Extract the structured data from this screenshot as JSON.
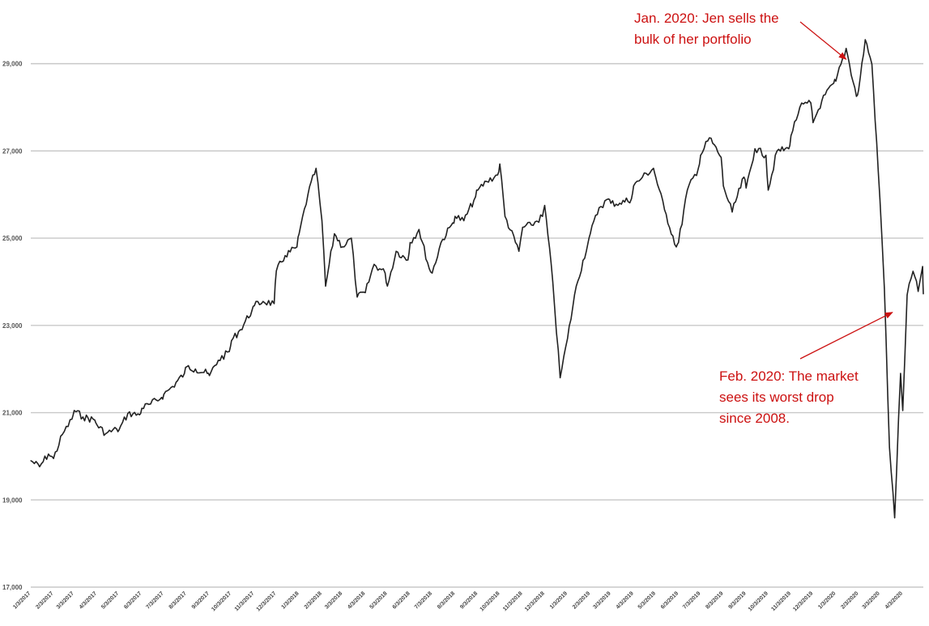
{
  "chart_data": {
    "type": "line",
    "title": "",
    "xlabel": "",
    "ylabel": "",
    "ylim": [
      17000,
      30200
    ],
    "grid": true,
    "y_ticks": [
      17000,
      19000,
      21000,
      23000,
      25000,
      27000,
      29000
    ],
    "y_tick_labels": [
      "17,000",
      "19,000",
      "21,000",
      "23,000",
      "25,000",
      "27,000",
      "29,000"
    ],
    "x_tick_labels": [
      "1/3/2017",
      "2/3/2017",
      "3/3/2017",
      "4/3/2017",
      "5/3/2017",
      "6/3/2017",
      "7/3/2017",
      "8/3/2017",
      "9/3/2017",
      "10/3/2017",
      "11/3/2017",
      "12/3/2017",
      "1/3/2018",
      "2/3/2018",
      "3/3/2018",
      "4/3/2018",
      "5/3/2018",
      "6/3/2018",
      "7/3/2018",
      "8/3/2018",
      "9/3/2018",
      "10/3/2018",
      "11/3/2018",
      "12/3/2018",
      "1/3/2019",
      "2/3/2019",
      "3/3/2019",
      "4/3/2019",
      "5/3/2019",
      "6/3/2019",
      "7/3/2019",
      "8/3/2019",
      "9/3/2019",
      "10/3/2019",
      "11/3/2019",
      "12/3/2019",
      "1/3/2020",
      "2/3/2020",
      "3/3/2020",
      "4/3/2020"
    ],
    "line_color": "#222222",
    "grid_color": "#c8c8c8",
    "series": [
      {
        "points": [
          [
            "1/3/2017",
            19900
          ],
          [
            "1/15/2017",
            19760
          ],
          [
            "1/27/2017",
            20050
          ],
          [
            "2/3/2017",
            19950
          ],
          [
            "2/15/2017",
            20500
          ],
          [
            "2/28/2017",
            20850
          ],
          [
            "3/3/2017",
            21050
          ],
          [
            "3/15/2017",
            20900
          ],
          [
            "3/31/2017",
            20830
          ],
          [
            "4/3/2017",
            20720
          ],
          [
            "4/15/2017",
            20520
          ],
          [
            "4/30/2017",
            20620
          ],
          [
            "5/3/2017",
            20600
          ],
          [
            "5/15/2017",
            20980
          ],
          [
            "5/31/2017",
            20950
          ],
          [
            "6/3/2017",
            21100
          ],
          [
            "6/15/2017",
            21200
          ],
          [
            "6/30/2017",
            21350
          ],
          [
            "7/3/2017",
            21420
          ],
          [
            "7/15/2017",
            21600
          ],
          [
            "7/31/2017",
            21900
          ],
          [
            "8/3/2017",
            22050
          ],
          [
            "8/15/2017",
            22000
          ],
          [
            "8/31/2017",
            21900
          ],
          [
            "9/3/2017",
            21850
          ],
          [
            "9/15/2017",
            22200
          ],
          [
            "9/30/2017",
            22400
          ],
          [
            "10/3/2017",
            22650
          ],
          [
            "10/15/2017",
            22900
          ],
          [
            "10/31/2017",
            23350
          ],
          [
            "11/3/2017",
            23450
          ],
          [
            "11/15/2017",
            23550
          ],
          [
            "11/30/2017",
            23500
          ],
          [
            "12/3/2017",
            24250
          ],
          [
            "12/15/2017",
            24600
          ],
          [
            "12/31/2017",
            24800
          ],
          [
            "1/3/2018",
            25100
          ],
          [
            "1/15/2018",
            26000
          ],
          [
            "1/26/2018",
            26600
          ],
          [
            "2/3/2018",
            25400
          ],
          [
            "2/8/2018",
            23900
          ],
          [
            "2/20/2018",
            25100
          ],
          [
            "3/3/2018",
            24800
          ],
          [
            "3/15/2018",
            25000
          ],
          [
            "3/23/2018",
            23650
          ],
          [
            "4/3/2018",
            23750
          ],
          [
            "4/15/2018",
            24400
          ],
          [
            "4/30/2018",
            24200
          ],
          [
            "5/3/2018",
            23900
          ],
          [
            "5/15/2018",
            24700
          ],
          [
            "5/31/2018",
            24500
          ],
          [
            "6/3/2018",
            24900
          ],
          [
            "6/15/2018",
            25200
          ],
          [
            "6/29/2018",
            24300
          ],
          [
            "7/3/2018",
            24200
          ],
          [
            "7/15/2018",
            24900
          ],
          [
            "7/31/2018",
            25350
          ],
          [
            "8/3/2018",
            25500
          ],
          [
            "8/15/2018",
            25400
          ],
          [
            "8/31/2018",
            25950
          ],
          [
            "9/3/2018",
            26100
          ],
          [
            "9/15/2018",
            26300
          ],
          [
            "9/30/2018",
            26450
          ],
          [
            "10/3/2018",
            26700
          ],
          [
            "10/10/2018",
            25500
          ],
          [
            "10/29/2018",
            24700
          ],
          [
            "11/3/2018",
            25250
          ],
          [
            "11/15/2018",
            25300
          ],
          [
            "11/30/2018",
            25500
          ],
          [
            "12/3/2018",
            25750
          ],
          [
            "12/14/2018",
            24000
          ],
          [
            "12/24/2018",
            21800
          ],
          [
            "1/3/2019",
            22700
          ],
          [
            "1/15/2019",
            23900
          ],
          [
            "1/31/2019",
            24900
          ],
          [
            "2/3/2019",
            25100
          ],
          [
            "2/15/2019",
            25700
          ],
          [
            "2/28/2019",
            25900
          ],
          [
            "3/3/2019",
            25800
          ],
          [
            "3/15/2019",
            25800
          ],
          [
            "3/31/2019",
            25900
          ],
          [
            "4/3/2019",
            26200
          ],
          [
            "4/15/2019",
            26400
          ],
          [
            "4/30/2019",
            26600
          ],
          [
            "5/3/2019",
            26400
          ],
          [
            "5/15/2019",
            25650
          ],
          [
            "5/31/2019",
            24800
          ],
          [
            "6/3/2019",
            24900
          ],
          [
            "6/15/2019",
            26100
          ],
          [
            "6/30/2019",
            26600
          ],
          [
            "7/3/2019",
            26900
          ],
          [
            "7/15/2019",
            27300
          ],
          [
            "7/31/2019",
            26850
          ],
          [
            "8/3/2019",
            26200
          ],
          [
            "8/15/2019",
            25600
          ],
          [
            "8/31/2019",
            26400
          ],
          [
            "9/3/2019",
            26150
          ],
          [
            "9/15/2019",
            27050
          ],
          [
            "9/30/2019",
            26900
          ],
          [
            "10/3/2019",
            26100
          ],
          [
            "10/15/2019",
            27000
          ],
          [
            "10/31/2019",
            27050
          ],
          [
            "11/3/2019",
            27350
          ],
          [
            "11/15/2019",
            28000
          ],
          [
            "11/30/2019",
            28100
          ],
          [
            "12/3/2019",
            27650
          ],
          [
            "12/15/2019",
            28150
          ],
          [
            "12/31/2019",
            28550
          ],
          [
            "1/3/2020",
            28600
          ],
          [
            "1/17/2020",
            29350
          ],
          [
            "1/31/2020",
            28250
          ],
          [
            "2/3/2020",
            28400
          ],
          [
            "2/12/2020",
            29550
          ],
          [
            "2/21/2020",
            28990
          ],
          [
            "3/3/2020",
            25900
          ],
          [
            "3/9/2020",
            23850
          ],
          [
            "3/16/2020",
            20200
          ],
          [
            "3/23/2020",
            18590
          ],
          [
            "3/31/2020",
            21900
          ],
          [
            "4/3/2020",
            21050
          ],
          [
            "4/9/2020",
            23700
          ],
          [
            "4/17/2020",
            24240
          ],
          [
            "4/24/2020",
            23780
          ],
          [
            "4/30/2020",
            24350
          ],
          [
            "5/1/2020",
            23720
          ]
        ]
      }
    ],
    "annotations": [
      {
        "text_lines": [
          "Jan. 2020: Jen sells the",
          "bulk of her portfolio"
        ],
        "target": [
          "1/17/2020",
          29100
        ],
        "color": "#cc1111"
      },
      {
        "text_lines": [
          "Feb. 2020: The market",
          "sees its worst drop",
          "since 2008."
        ],
        "target": [
          "3/20/2020",
          23300
        ],
        "color": "#cc1111"
      }
    ]
  }
}
